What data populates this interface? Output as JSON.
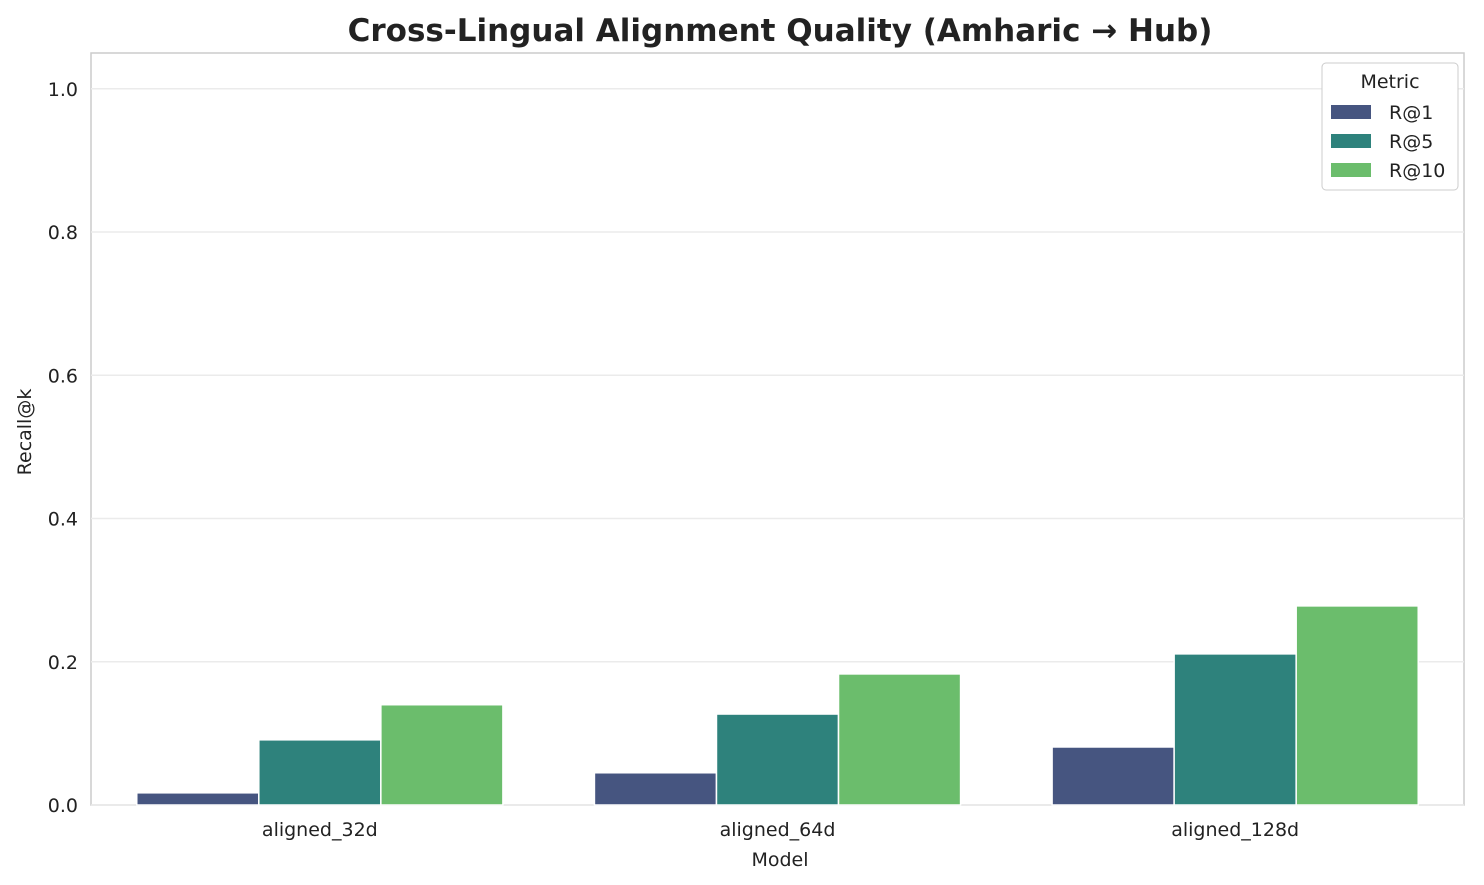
{
  "chart_data": {
    "type": "bar",
    "title": "Cross-Lingual Alignment Quality (Amharic → Hub)",
    "xlabel": "Model",
    "ylabel": "Recall@k",
    "categories": [
      "aligned_32d",
      "aligned_64d",
      "aligned_128d"
    ],
    "ylim": [
      0,
      1.05
    ],
    "yticks": [
      "0.0",
      "0.2",
      "0.4",
      "0.6",
      "0.8",
      "1.0"
    ],
    "grid": true,
    "legend": {
      "title": "Metric",
      "placement": "top-right"
    },
    "series": [
      {
        "name": "R@1",
        "color": "#465580",
        "values": [
          0.017,
          0.045,
          0.081
        ]
      },
      {
        "name": "R@5",
        "color": "#2e827c",
        "values": [
          0.091,
          0.127,
          0.211
        ]
      },
      {
        "name": "R@10",
        "color": "#6bbd6c",
        "values": [
          0.14,
          0.183,
          0.278
        ]
      }
    ]
  }
}
